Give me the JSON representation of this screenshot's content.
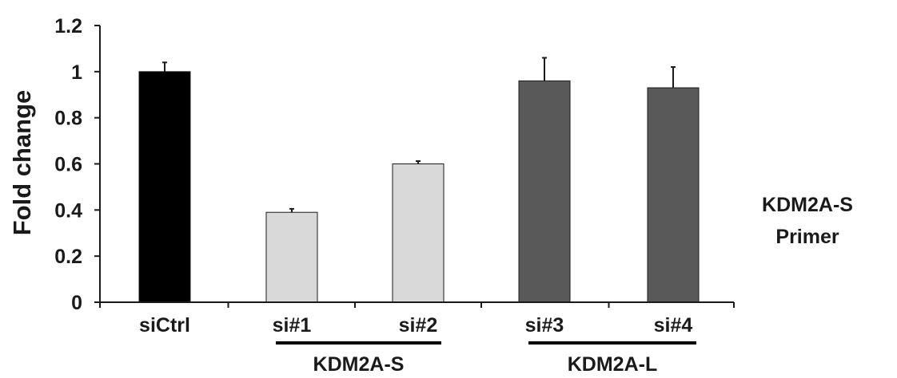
{
  "chart_data": {
    "type": "bar",
    "ylabel": "Fold change",
    "ylim": [
      0,
      1.2
    ],
    "yticks": [
      0,
      0.2,
      0.4,
      0.6,
      0.8,
      1,
      1.2
    ],
    "ytick_labels": [
      "0",
      "0.2",
      "0.4",
      "0.6",
      "0.8",
      "1",
      "1.2"
    ],
    "categories": [
      "siCtrl",
      "si#1",
      "si#2",
      "si#3",
      "si#4"
    ],
    "values": [
      1.0,
      0.39,
      0.6,
      0.96,
      0.93
    ],
    "errors": [
      0.04,
      0.015,
      0.012,
      0.1,
      0.09
    ],
    "bar_colors": [
      "#000000",
      "#d9d9d9",
      "#d9d9d9",
      "#595959",
      "#595959"
    ],
    "groups": [
      {
        "label": "KDM2A-S",
        "categories": [
          "si#1",
          "si#2"
        ]
      },
      {
        "label": "KDM2A-L",
        "categories": [
          "si#3",
          "si#4"
        ]
      }
    ],
    "annotation": {
      "line1": "KDM2A-S",
      "line2": "Primer"
    },
    "grid": false,
    "legend": "none"
  }
}
